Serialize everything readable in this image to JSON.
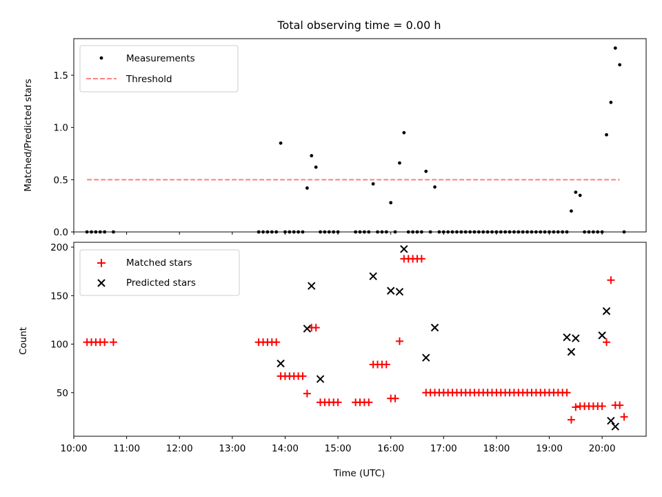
{
  "chart_data": [
    {
      "type": "scatter",
      "title": "Total observing time = 0.00 h",
      "xlabel": "",
      "ylabel": "Matched/Predicted stars",
      "xlim": [
        "10:00",
        "20:50"
      ],
      "ylim": [
        0,
        1.85
      ],
      "yticks": [
        "0.0",
        "0.5",
        "1.0",
        "1.5"
      ],
      "legend_position": "top-left",
      "series": [
        {
          "name": "Measurements",
          "color": "#000000",
          "marker": "dot",
          "x": [
            "10:15",
            "10:20",
            "10:25",
            "10:30",
            "10:35",
            "10:45",
            "13:30",
            "13:35",
            "13:40",
            "13:45",
            "13:50",
            "13:55",
            "14:00",
            "14:05",
            "14:10",
            "14:15",
            "14:20",
            "14:25",
            "14:30",
            "14:35",
            "14:40",
            "14:45",
            "14:50",
            "14:55",
            "15:00",
            "15:20",
            "15:25",
            "15:30",
            "15:35",
            "15:40",
            "15:45",
            "15:50",
            "15:55",
            "16:00",
            "16:05",
            "16:10",
            "16:15",
            "16:20",
            "16:25",
            "16:30",
            "16:35",
            "16:40",
            "16:45",
            "16:50",
            "16:55",
            "17:00",
            "17:05",
            "17:10",
            "17:15",
            "17:20",
            "17:25",
            "17:30",
            "17:35",
            "17:40",
            "17:45",
            "17:50",
            "17:55",
            "18:00",
            "18:05",
            "18:10",
            "18:15",
            "18:20",
            "18:25",
            "18:30",
            "18:35",
            "18:40",
            "18:45",
            "18:50",
            "18:55",
            "19:00",
            "19:05",
            "19:10",
            "19:15",
            "19:20",
            "19:25",
            "19:30",
            "19:35",
            "19:40",
            "19:45",
            "19:50",
            "19:55",
            "20:00",
            "20:05",
            "20:10",
            "20:15",
            "20:20",
            "20:25"
          ],
          "y": [
            0,
            0,
            0,
            0,
            0,
            0,
            0,
            0,
            0,
            0,
            0,
            0.85,
            0,
            0,
            0,
            0,
            0,
            0.42,
            0.73,
            0.62,
            0,
            0,
            0,
            0,
            0,
            0,
            0,
            0,
            0,
            0.46,
            0,
            0,
            0,
            0.28,
            0,
            0.66,
            0.95,
            0,
            0,
            0,
            0,
            0.58,
            0,
            0.43,
            0,
            0,
            0,
            0,
            0,
            0,
            0,
            0,
            0,
            0,
            0,
            0,
            0,
            0,
            0,
            0,
            0,
            0,
            0,
            0,
            0,
            0,
            0,
            0,
            0,
            0,
            0,
            0,
            0,
            0,
            0.2,
            0.38,
            0.35,
            0,
            0,
            0,
            0,
            0,
            0.93,
            1.24,
            1.76,
            1.6,
            0
          ]
        },
        {
          "name": "Threshold",
          "color": "#ff7f7f",
          "style": "dashed",
          "x": [
            "10:15",
            "20:20"
          ],
          "y": [
            0.5,
            0.5
          ]
        }
      ]
    },
    {
      "type": "scatter",
      "title": "",
      "xlabel": "Time (UTC)",
      "ylabel": "Count",
      "xlim": [
        "10:00",
        "20:50"
      ],
      "ylim": [
        5,
        205
      ],
      "yticks": [
        "50",
        "100",
        "150",
        "200"
      ],
      "xticks": [
        "10:00",
        "11:00",
        "12:00",
        "13:00",
        "14:00",
        "15:00",
        "16:00",
        "17:00",
        "18:00",
        "19:00",
        "20:00"
      ],
      "legend_position": "top-left",
      "series": [
        {
          "name": "Matched stars",
          "color": "#ff0000",
          "marker": "plus",
          "x": [
            "10:15",
            "10:20",
            "10:25",
            "10:30",
            "10:35",
            "10:45",
            "13:30",
            "13:35",
            "13:40",
            "13:45",
            "13:50",
            "13:55",
            "14:00",
            "14:05",
            "14:10",
            "14:15",
            "14:20",
            "14:25",
            "14:30",
            "14:35",
            "14:40",
            "14:45",
            "14:50",
            "14:55",
            "15:00",
            "15:20",
            "15:25",
            "15:30",
            "15:35",
            "15:40",
            "15:45",
            "15:50",
            "15:55",
            "16:00",
            "16:05",
            "16:10",
            "16:15",
            "16:20",
            "16:25",
            "16:30",
            "16:35",
            "16:40",
            "16:45",
            "16:50",
            "16:55",
            "17:00",
            "17:05",
            "17:10",
            "17:15",
            "17:20",
            "17:25",
            "17:30",
            "17:35",
            "17:40",
            "17:45",
            "17:50",
            "17:55",
            "18:00",
            "18:05",
            "18:10",
            "18:15",
            "18:20",
            "18:25",
            "18:30",
            "18:35",
            "18:40",
            "18:45",
            "18:50",
            "18:55",
            "19:00",
            "19:05",
            "19:10",
            "19:15",
            "19:20",
            "19:25",
            "19:30",
            "19:35",
            "19:40",
            "19:45",
            "19:50",
            "19:55",
            "20:00",
            "20:05",
            "20:10",
            "20:15",
            "20:20",
            "20:25"
          ],
          "y": [
            102,
            102,
            102,
            102,
            102,
            102,
            102,
            102,
            102,
            102,
            102,
            67,
            67,
            67,
            67,
            67,
            67,
            49,
            117,
            117,
            40,
            40,
            40,
            40,
            40,
            40,
            40,
            40,
            40,
            79,
            79,
            79,
            79,
            44,
            44,
            103,
            188,
            188,
            188,
            188,
            188,
            50,
            50,
            50,
            50,
            50,
            50,
            50,
            50,
            50,
            50,
            50,
            50,
            50,
            50,
            50,
            50,
            50,
            50,
            50,
            50,
            50,
            50,
            50,
            50,
            50,
            50,
            50,
            50,
            50,
            50,
            50,
            50,
            50,
            22,
            35,
            36,
            36,
            36,
            36,
            36,
            36,
            102,
            166,
            37,
            37,
            25
          ]
        },
        {
          "name": "Predicted stars",
          "color": "#000000",
          "marker": "x",
          "x": [
            "13:55",
            "14:25",
            "14:30",
            "14:40",
            "15:40",
            "16:00",
            "16:10",
            "16:15",
            "16:40",
            "16:50",
            "19:20",
            "19:25",
            "19:30",
            "20:00",
            "20:05",
            "20:10",
            "20:15"
          ],
          "y": [
            80,
            116,
            160,
            64,
            170,
            155,
            154,
            198,
            86,
            117,
            107,
            92,
            106,
            109,
            134,
            21,
            15
          ]
        }
      ]
    }
  ]
}
